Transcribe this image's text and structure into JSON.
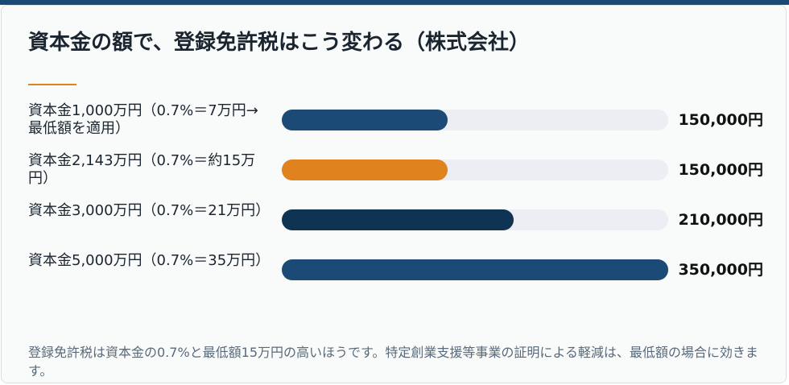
{
  "chart_data": {
    "type": "bar",
    "orientation": "horizontal",
    "title": "資本金の額で、登録免許税はこう変わる（株式会社）",
    "categories": [
      "資本金1,000万円（0.7%＝7万円→最低額を適用）",
      "資本金2,143万円（0.7%＝約15万円）",
      "資本金3,000万円（0.7%＝21万円）",
      "資本金5,000万円（0.7%＝35万円）"
    ],
    "values": [
      150000,
      150000,
      210000,
      350000
    ],
    "value_labels": [
      "150,000円",
      "150,000円",
      "210,000円",
      "350,000円"
    ],
    "colors": [
      "#1a4a75",
      "#e0821e",
      "#0f3352",
      "#1a4a75"
    ],
    "xlim": [
      0,
      350000
    ],
    "note": "登録免許税は資本金の0.7%と最低額15万円の高いほうです。特定創業支援等事業の証明による軽減は、最低額の場合に効きます。"
  }
}
